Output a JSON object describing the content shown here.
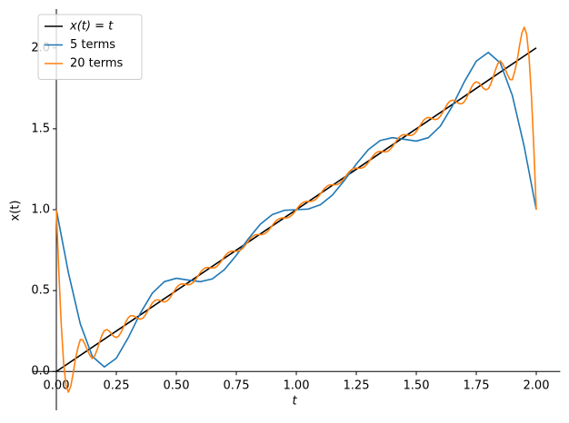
{
  "chart_data": {
    "type": "line",
    "xlabel": "t",
    "ylabel": "x(t)",
    "xlim": [
      -0.1,
      2.1
    ],
    "ylim": [
      -0.24,
      2.24
    ],
    "xticks": [
      {
        "value": 0,
        "label": "0.00"
      },
      {
        "value": 0.25,
        "label": "0.25"
      },
      {
        "value": 0.5,
        "label": "0.50"
      },
      {
        "value": 0.75,
        "label": "0.75"
      },
      {
        "value": 1,
        "label": "1.00"
      },
      {
        "value": 1.25,
        "label": "1.25"
      },
      {
        "value": 1.5,
        "label": "1.50"
      },
      {
        "value": 1.75,
        "label": "1.75"
      },
      {
        "value": 2,
        "label": "2.00"
      }
    ],
    "yticks": [
      {
        "value": 0,
        "label": "0.0"
      },
      0.5,
      {
        "value": 1,
        "label": "1.0"
      },
      1.5,
      {
        "value": 2,
        "label": "2.0"
      }
    ],
    "legend": "upper left",
    "grid": false,
    "series": [
      {
        "name": "x(t) = t",
        "color": "#000000",
        "x": [
          0,
          2
        ],
        "values": [
          0,
          2
        ]
      },
      {
        "name": "5 terms",
        "color": "#1f77b4",
        "x": [
          0,
          0.05,
          0.1,
          0.15,
          0.2,
          0.25,
          0.3,
          0.35,
          0.4,
          0.45,
          0.5,
          0.55,
          0.6,
          0.65,
          0.7,
          0.75,
          0.8,
          0.85,
          0.9,
          0.95,
          1,
          1.05,
          1.1,
          1.15,
          1.2,
          1.25,
          1.3,
          1.35,
          1.4,
          1.45,
          1.5,
          1.55,
          1.6,
          1.65,
          1.7,
          1.75,
          1.8,
          1.85,
          1.9,
          1.95,
          2
        ],
        "values": [
          1,
          0.612,
          0.293,
          0.093,
          0.028,
          0.082,
          0.21,
          0.36,
          0.484,
          0.555,
          0.576,
          0.565,
          0.555,
          0.572,
          0.629,
          0.718,
          0.82,
          0.91,
          0.97,
          0.996,
          1,
          1.004,
          1.03,
          1.09,
          1.18,
          1.282,
          1.371,
          1.428,
          1.445,
          1.435,
          1.424,
          1.445,
          1.516,
          1.64,
          1.79,
          1.918,
          1.972,
          1.907,
          1.707,
          1.388,
          1
        ]
      },
      {
        "name": "20 terms",
        "color": "#ff7f0e",
        "x": [
          0,
          0.01,
          0.02,
          0.03,
          0.04,
          0.05,
          0.06,
          0.07,
          0.08,
          0.09,
          0.1,
          0.11,
          0.12,
          0.13,
          0.14,
          0.15,
          0.16,
          0.17,
          0.18,
          0.19,
          0.2,
          0.21,
          0.22,
          0.23,
          0.24,
          0.25,
          0.26,
          0.27,
          0.28,
          0.29,
          0.3,
          0.31,
          0.32,
          0.33,
          0.34,
          0.35,
          0.36,
          0.37,
          0.38,
          0.39,
          0.4,
          0.41,
          0.42,
          0.43,
          0.44,
          0.45,
          0.46,
          0.47,
          0.48,
          0.49,
          0.5,
          0.51,
          0.52,
          0.53,
          0.54,
          0.55,
          0.56,
          0.57,
          0.58,
          0.59,
          0.6,
          0.61,
          0.62,
          0.63,
          0.64,
          0.65,
          0.66,
          0.67,
          0.68,
          0.69,
          0.7,
          0.71,
          0.72,
          0.73,
          0.74,
          0.75,
          0.76,
          0.77,
          0.78,
          0.79,
          0.8,
          0.81,
          0.82,
          0.83,
          0.84,
          0.85,
          0.86,
          0.87,
          0.88,
          0.89,
          0.9,
          0.91,
          0.92,
          0.93,
          0.94,
          0.95,
          0.96,
          0.97,
          0.98,
          0.99,
          1,
          1.01,
          1.02,
          1.03,
          1.04,
          1.05,
          1.06,
          1.07,
          1.08,
          1.09,
          1.1,
          1.11,
          1.12,
          1.13,
          1.14,
          1.15,
          1.16,
          1.17,
          1.18,
          1.19,
          1.2,
          1.21,
          1.22,
          1.23,
          1.24,
          1.25,
          1.26,
          1.27,
          1.28,
          1.29,
          1.3,
          1.31,
          1.32,
          1.33,
          1.34,
          1.35,
          1.36,
          1.37,
          1.38,
          1.39,
          1.4,
          1.41,
          1.42,
          1.43,
          1.44,
          1.45,
          1.46,
          1.47,
          1.48,
          1.49,
          1.5,
          1.51,
          1.52,
          1.53,
          1.54,
          1.55,
          1.56,
          1.57,
          1.58,
          1.59,
          1.6,
          1.61,
          1.62,
          1.63,
          1.64,
          1.65,
          1.66,
          1.67,
          1.68,
          1.69,
          1.7,
          1.71,
          1.72,
          1.73,
          1.74,
          1.75,
          1.76,
          1.77,
          1.78,
          1.79,
          1.8,
          1.81,
          1.82,
          1.83,
          1.84,
          1.85,
          1.86,
          1.87,
          1.88,
          1.89,
          1.9,
          1.91,
          1.92,
          1.93,
          1.94,
          1.95,
          1.96,
          1.97,
          1.98,
          1.99,
          2
        ],
        "values": [
          1,
          0.628,
          0.302,
          0.059,
          -0.084,
          -0.128,
          -0.092,
          -0.012,
          0.081,
          0.147,
          0.197,
          0.195,
          0.165,
          0.13,
          0.099,
          0.08,
          0.097,
          0.135,
          0.182,
          0.224,
          0.252,
          0.259,
          0.25,
          0.232,
          0.216,
          0.21,
          0.219,
          0.243,
          0.275,
          0.308,
          0.333,
          0.345,
          0.345,
          0.337,
          0.327,
          0.323,
          0.329,
          0.346,
          0.372,
          0.399,
          0.423,
          0.438,
          0.443,
          0.44,
          0.433,
          0.43,
          0.435,
          0.448,
          0.47,
          0.494,
          0.517,
          0.533,
          0.541,
          0.541,
          0.538,
          0.536,
          0.539,
          0.55,
          0.568,
          0.59,
          0.612,
          0.629,
          0.64,
          0.643,
          0.641,
          0.64,
          0.642,
          0.651,
          0.667,
          0.687,
          0.709,
          0.727,
          0.738,
          0.744,
          0.744,
          0.743,
          0.745,
          0.752,
          0.766,
          0.785,
          0.805,
          0.824,
          0.837,
          0.845,
          0.846,
          0.846,
          0.847,
          0.853,
          0.865,
          0.883,
          0.903,
          0.922,
          0.937,
          0.945,
          0.949,
          0.949,
          0.949,
          0.954,
          0.964,
          0.98,
          1,
          1.02,
          1.036,
          1.046,
          1.051,
          1.051,
          1.051,
          1.055,
          1.063,
          1.078,
          1.097,
          1.117,
          1.135,
          1.147,
          1.153,
          1.154,
          1.154,
          1.155,
          1.163,
          1.176,
          1.195,
          1.215,
          1.234,
          1.248,
          1.255,
          1.257,
          1.256,
          1.256,
          1.262,
          1.273,
          1.291,
          1.313,
          1.333,
          1.349,
          1.358,
          1.36,
          1.359,
          1.357,
          1.36,
          1.371,
          1.388,
          1.41,
          1.432,
          1.45,
          1.461,
          1.464,
          1.462,
          1.459,
          1.459,
          1.467,
          1.483,
          1.506,
          1.53,
          1.552,
          1.565,
          1.57,
          1.567,
          1.56,
          1.557,
          1.562,
          1.577,
          1.601,
          1.628,
          1.654,
          1.671,
          1.677,
          1.673,
          1.663,
          1.655,
          1.655,
          1.667,
          1.692,
          1.725,
          1.757,
          1.781,
          1.79,
          1.784,
          1.768,
          1.75,
          1.741,
          1.748,
          1.776,
          1.818,
          1.865,
          1.903,
          1.92,
          1.901,
          1.87,
          1.835,
          1.805,
          1.803,
          1.853,
          1.919,
          2.012,
          2.092,
          2.128,
          2.084,
          1.941,
          1.698,
          1.372,
          1
        ]
      }
    ]
  }
}
